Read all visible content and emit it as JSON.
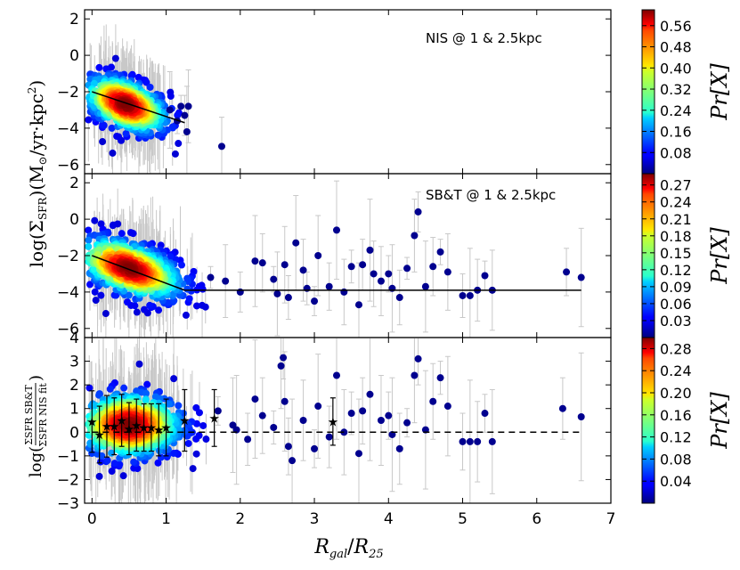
{
  "chart_data": {
    "type": "scatter",
    "x_axis": {
      "label": "R_gal/R_25",
      "label_main": "R",
      "label_sub1": "gal",
      "label_sep": "/",
      "label_main2": "R",
      "label_sub2": "25",
      "range": [
        -0.1,
        7
      ],
      "ticks": [
        0,
        1,
        2,
        3,
        4,
        5,
        6,
        7
      ],
      "tick_labels": [
        "0",
        "1",
        "2",
        "3",
        "4",
        "5",
        "6",
        "7"
      ]
    },
    "panels": [
      {
        "id": "nis",
        "annotation": "NIS @ 1 & 2.5kpc",
        "ylabel_part": "log(Σ_SFR)",
        "yrange": [
          -6.5,
          2.5
        ],
        "yticks": [
          2,
          0,
          -2,
          -4,
          -6
        ],
        "ytick_labels": [
          "2",
          "0",
          "−2",
          "−4",
          "−6"
        ],
        "fit_line": {
          "x": [
            0,
            1.25
          ],
          "y": [
            -2.0,
            -3.7
          ]
        },
        "colorbar": {
          "label": "Pr[X]",
          "max": 0.62,
          "ticks": [
            0.56,
            0.48,
            0.4,
            0.32,
            0.24,
            0.16,
            0.08
          ],
          "tick_labels": [
            "0.56",
            "0.48",
            "0.40",
            "0.32",
            "0.24",
            "0.16",
            "0.08"
          ]
        },
        "cloud": {
          "cx": 0.45,
          "cy": -2.7,
          "sx": 0.3,
          "sy": 0.9,
          "tilt": -1.3,
          "n": 700,
          "xmin": -0.05,
          "xmax": 1.25
        },
        "outliers": [
          [
            1.2,
            -2.8
          ],
          [
            1.3,
            -2.8
          ],
          [
            1.25,
            -3.3
          ],
          [
            1.28,
            -4.2
          ],
          [
            1.75,
            -5.0
          ],
          [
            1.15,
            -3.6
          ],
          [
            1.05,
            -3.0
          ]
        ]
      },
      {
        "id": "sbt",
        "annotation": "SB&T @ 1 & 2.5kpc",
        "ylabel_part": "(M☉/yr·kpc²)",
        "yrange": [
          -6.5,
          2.5
        ],
        "yticks": [
          2,
          0,
          -2,
          -4,
          -6
        ],
        "ytick_labels": [
          "2",
          "0",
          "−2",
          "−4",
          "−6"
        ],
        "fit_line": {
          "x": [
            0,
            1.25,
            6.6
          ],
          "y": [
            -2.0,
            -3.9,
            -3.9
          ]
        },
        "colorbar": {
          "label": "Pr[X]",
          "max": 0.29,
          "ticks": [
            0.27,
            0.24,
            0.21,
            0.18,
            0.15,
            0.12,
            0.09,
            0.06,
            0.03
          ],
          "tick_labels": [
            "0.27",
            "0.24",
            "0.21",
            "0.18",
            "0.15",
            "0.12",
            "0.09",
            "0.06",
            "0.03"
          ]
        },
        "cloud": {
          "cx": 0.5,
          "cy": -2.7,
          "sx": 0.38,
          "sy": 0.95,
          "tilt": -1.2,
          "n": 800,
          "xmin": -0.05,
          "xmax": 1.55
        },
        "outliers": [
          [
            1.6,
            -3.2
          ],
          [
            1.8,
            -3.4
          ],
          [
            2.0,
            -4.0
          ],
          [
            2.2,
            -2.3
          ],
          [
            2.3,
            -2.4
          ],
          [
            2.45,
            -3.3
          ],
          [
            2.6,
            -2.5
          ],
          [
            2.65,
            -4.3
          ],
          [
            2.75,
            -1.3
          ],
          [
            2.85,
            -2.8
          ],
          [
            3.0,
            -4.5
          ],
          [
            3.05,
            -2.0
          ],
          [
            3.2,
            -3.7
          ],
          [
            3.3,
            -0.6
          ],
          [
            3.4,
            -4.0
          ],
          [
            3.5,
            -2.6
          ],
          [
            3.6,
            -4.7
          ],
          [
            3.65,
            -2.5
          ],
          [
            3.75,
            -1.7
          ],
          [
            3.9,
            -3.4
          ],
          [
            4.0,
            -3.0
          ],
          [
            4.05,
            -3.8
          ],
          [
            4.15,
            -4.3
          ],
          [
            4.25,
            -2.7
          ],
          [
            4.35,
            -0.9
          ],
          [
            4.4,
            0.4
          ],
          [
            4.5,
            -3.7
          ],
          [
            4.6,
            -2.6
          ],
          [
            4.7,
            -1.8
          ],
          [
            4.8,
            -2.9
          ],
          [
            5.0,
            -4.2
          ],
          [
            5.1,
            -4.2
          ],
          [
            5.2,
            -3.9
          ],
          [
            5.3,
            -3.1
          ],
          [
            5.4,
            -3.9
          ],
          [
            6.4,
            -2.9
          ],
          [
            6.6,
            -3.2
          ],
          [
            3.8,
            -3.0
          ],
          [
            2.9,
            -3.8
          ],
          [
            2.5,
            -4.1
          ]
        ]
      },
      {
        "id": "ratio",
        "annotation": "",
        "ylabel_part": "log(Σ_SFR SB&T / Σ_SFR NIS fit)",
        "ylabel_num": "ΣSFR SB&T",
        "ylabel_den": "ΣSFR NIS fit",
        "yrange": [
          -3,
          4
        ],
        "yticks": [
          4,
          3,
          2,
          1,
          0,
          -1,
          -2,
          -3
        ],
        "ytick_labels": [
          "4",
          "3",
          "2",
          "1",
          "0",
          "−1",
          "−2",
          "−3"
        ],
        "zero_line": {
          "x": [
            0,
            6.6
          ],
          "y": [
            0,
            0
          ]
        },
        "colorbar": {
          "label": "Pr[X]",
          "max": 0.3,
          "ticks": [
            0.28,
            0.24,
            0.2,
            0.16,
            0.12,
            0.08,
            0.04
          ],
          "tick_labels": [
            "0.28",
            "0.24",
            "0.20",
            "0.16",
            "0.12",
            "0.08",
            "0.04"
          ]
        },
        "cloud": {
          "cx": 0.5,
          "cy": 0.3,
          "sx": 0.38,
          "sy": 0.9,
          "tilt": 0.0,
          "n": 800,
          "xmin": -0.05,
          "xmax": 1.55
        },
        "binned_medians": {
          "x": [
            0.0,
            0.1,
            0.2,
            0.3,
            0.4,
            0.5,
            0.6,
            0.7,
            0.8,
            0.9,
            1.0,
            1.25,
            1.65,
            3.25
          ],
          "y": [
            0.45,
            -0.1,
            0.25,
            0.25,
            0.5,
            0.15,
            0.3,
            0.2,
            0.2,
            0.1,
            0.2,
            0.5,
            0.6,
            0.45
          ],
          "err": [
            1.3,
            1.2,
            1.3,
            1.2,
            1.1,
            1.1,
            1.1,
            1.0,
            1.0,
            1.1,
            1.2,
            1.3,
            1.2,
            1.0
          ]
        },
        "outliers": [
          [
            1.7,
            0.9
          ],
          [
            1.9,
            0.3
          ],
          [
            2.1,
            -0.3
          ],
          [
            2.2,
            1.4
          ],
          [
            2.3,
            0.7
          ],
          [
            2.45,
            0.2
          ],
          [
            2.6,
            1.3
          ],
          [
            2.65,
            -0.6
          ],
          [
            2.7,
            -1.2
          ],
          [
            2.85,
            0.5
          ],
          [
            3.0,
            -0.7
          ],
          [
            3.05,
            1.1
          ],
          [
            3.2,
            -0.2
          ],
          [
            3.3,
            2.4
          ],
          [
            3.4,
            0.0
          ],
          [
            3.5,
            0.8
          ],
          [
            3.6,
            -0.9
          ],
          [
            3.65,
            0.9
          ],
          [
            3.75,
            1.6
          ],
          [
            3.9,
            0.5
          ],
          [
            4.0,
            0.7
          ],
          [
            4.05,
            -0.1
          ],
          [
            4.15,
            -0.7
          ],
          [
            4.25,
            0.4
          ],
          [
            4.35,
            2.4
          ],
          [
            4.4,
            3.1
          ],
          [
            4.5,
            0.1
          ],
          [
            4.6,
            1.3
          ],
          [
            4.7,
            2.3
          ],
          [
            4.8,
            1.1
          ],
          [
            5.0,
            -0.4
          ],
          [
            5.1,
            -0.4
          ],
          [
            5.2,
            -0.4
          ],
          [
            5.3,
            0.8
          ],
          [
            5.4,
            -0.4
          ],
          [
            6.35,
            1.0
          ],
          [
            6.6,
            0.65
          ],
          [
            2.55,
            2.8
          ],
          [
            2.58,
            3.15
          ],
          [
            1.95,
            0.1
          ]
        ]
      }
    ]
  }
}
